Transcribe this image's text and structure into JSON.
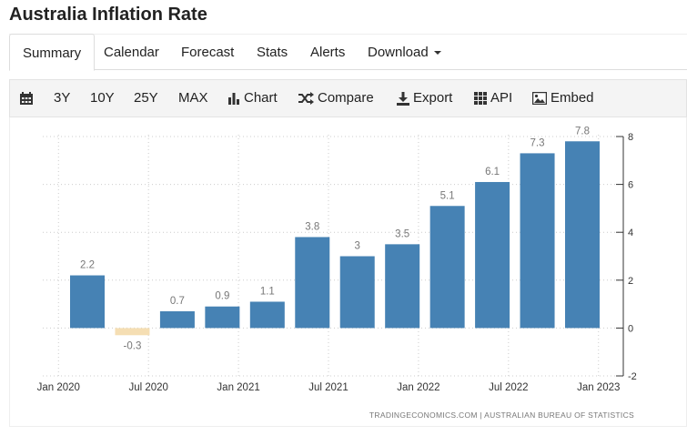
{
  "page_title": "Australia Inflation Rate",
  "tabs": [
    {
      "label": "Summary",
      "active": true
    },
    {
      "label": "Calendar"
    },
    {
      "label": "Forecast"
    },
    {
      "label": "Stats"
    },
    {
      "label": "Alerts"
    },
    {
      "label": "Download"
    }
  ],
  "toolbar": {
    "range_3y": "3Y",
    "range_10y": "10Y",
    "range_25y": "25Y",
    "range_max": "MAX",
    "chart": "Chart",
    "compare": "Compare",
    "export": "Export",
    "api": "API",
    "embed": "Embed",
    "icons": [
      "calendar-icon",
      "bar-chart-icon",
      "shuffle-icon",
      "download-icon",
      "grid-icon",
      "image-icon"
    ]
  },
  "chart_data": {
    "type": "bar",
    "categories": [
      "Q1 2020",
      "Q2 2020",
      "Q3 2020",
      "Q4 2020",
      "Q1 2021",
      "Q2 2021",
      "Q3 2021",
      "Q4 2021",
      "Q1 2022",
      "Q2 2022",
      "Q3 2022",
      "Q4 2022"
    ],
    "values": [
      2.2,
      -0.3,
      0.7,
      0.9,
      1.1,
      3.8,
      3,
      3.5,
      5.1,
      6.1,
      7.3,
      7.8
    ],
    "value_labels": [
      "2.2",
      "-0.3",
      "0.7",
      "0.9",
      "1.1",
      "3.8",
      "3",
      "3.5",
      "5.1",
      "6.1",
      "7.3",
      "7.8"
    ],
    "x_tick_labels": [
      "Jan 2020",
      "Jul 2020",
      "Jan 2021",
      "Jul 2021",
      "Jan 2022",
      "Jul 2022",
      "Jan 2023"
    ],
    "y_tick_labels": [
      "8",
      "6",
      "4",
      "2",
      "0",
      "-2"
    ],
    "ylim": [
      -2,
      8
    ],
    "y_axis_side": "right",
    "grid": true,
    "colors": {
      "positive": "#4682b4",
      "negative": "#f5deb3",
      "label": "#777777",
      "grid": "#cccccc",
      "axis": "#333333"
    },
    "source": "TRADINGECONOMICS.COM  |  AUSTRALIAN BUREAU OF STATISTICS"
  }
}
